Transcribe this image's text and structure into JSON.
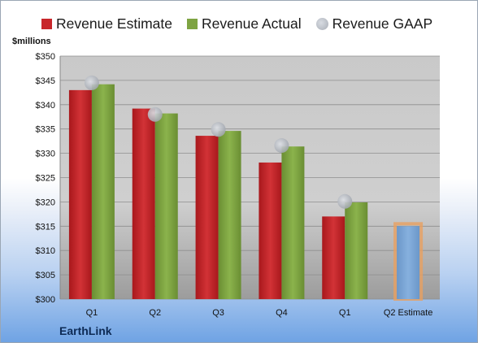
{
  "unit_label": "$millions",
  "brand": "EarthLink",
  "legend": [
    {
      "label": "Revenue Estimate",
      "color": "#c8262a",
      "kind": "square"
    },
    {
      "label": "Revenue Actual",
      "color": "#7ea442",
      "kind": "square"
    },
    {
      "label": "Revenue GAAP",
      "color": "#b4b8be",
      "kind": "dot"
    }
  ],
  "chart_data": {
    "type": "bar",
    "categories": [
      "Q1",
      "Q2",
      "Q3",
      "Q4",
      "Q1",
      "Q2 Estimate"
    ],
    "ylim": [
      300,
      350
    ],
    "yticks": [
      300,
      305,
      310,
      315,
      320,
      325,
      330,
      335,
      340,
      345,
      350
    ],
    "ytick_labels": [
      "$300",
      "$305",
      "$310",
      "$315",
      "$320",
      "$325",
      "$330",
      "$335",
      "$340",
      "$345",
      "$350"
    ],
    "grid": true,
    "legend_position": "top",
    "series": [
      {
        "name": "Revenue Estimate",
        "color": "#c8262a",
        "values": [
          343.0,
          339.2,
          333.6,
          328.1,
          317.0,
          null
        ]
      },
      {
        "name": "Revenue Actual",
        "color": "#7ea442",
        "values": [
          344.2,
          338.2,
          334.6,
          331.4,
          319.9,
          null
        ]
      },
      {
        "name": "Revenue GAAP",
        "color": "#b4b8be",
        "values": [
          344.5,
          338.0,
          334.9,
          331.6,
          320.1,
          null
        ]
      }
    ],
    "forecast": {
      "category_index": 5,
      "value": 315.0,
      "fill": "#7aa6d6",
      "outline": "#e8a060"
    }
  }
}
